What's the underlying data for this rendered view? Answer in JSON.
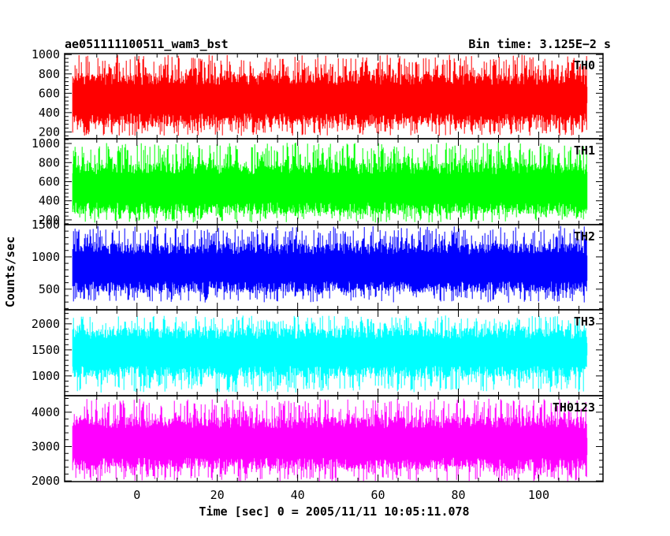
{
  "title_left": "ae051111100511_wam3_bst",
  "title_right": "Bin time: 3.125E−2 s",
  "ylabel": "Counts/sec",
  "xlabel": "Time [sec] 0 = 2005/11/11 10:05:11.078",
  "chart_data": {
    "type": "line",
    "x_range": [
      -16,
      112
    ],
    "xlim": [
      -18,
      116
    ],
    "x_ticks": [
      0,
      20,
      40,
      60,
      80,
      100
    ],
    "x_tick_labels": [
      "0",
      "20",
      "40",
      "60",
      "80",
      "100"
    ],
    "bin_time": 0.03125,
    "panels": [
      {
        "name": "TH0",
        "color": "#ff0000",
        "ylim": [
          130,
          1010
        ],
        "y_ticks": [
          200,
          400,
          600,
          800,
          1000
        ],
        "y_tick_labels": [
          "200",
          "400",
          "600",
          "800",
          "1000"
        ],
        "mean": 540,
        "low": 160,
        "high": 1000
      },
      {
        "name": "TH1",
        "color": "#00ff00",
        "ylim": [
          150,
          1050
        ],
        "y_ticks": [
          200,
          400,
          600,
          800,
          1000
        ],
        "y_tick_labels": [
          "200",
          "400",
          "600",
          "800",
          "1000"
        ],
        "mean": 530,
        "low": 170,
        "high": 1010
      },
      {
        "name": "TH2",
        "color": "#0000ff",
        "ylim": [
          180,
          1500
        ],
        "y_ticks": [
          500,
          1000,
          1500
        ],
        "y_tick_labels": [
          "500",
          "1000",
          "1500"
        ],
        "mean": 830,
        "low": 290,
        "high": 1480
      },
      {
        "name": "TH3",
        "color": "#00ffff",
        "ylim": [
          620,
          2270
        ],
        "y_ticks": [
          1000,
          1500,
          2000
        ],
        "y_tick_labels": [
          "1000",
          "1500",
          "2000"
        ],
        "mean": 1450,
        "low": 680,
        "high": 2160
      },
      {
        "name": "TH0123",
        "color": "#ff00ff",
        "ylim": [
          1980,
          4480
        ],
        "y_ticks": [
          2000,
          3000,
          4000
        ],
        "y_tick_labels": [
          "2000",
          "3000",
          "4000"
        ],
        "mean": 3100,
        "low": 1990,
        "high": 4400
      }
    ]
  }
}
